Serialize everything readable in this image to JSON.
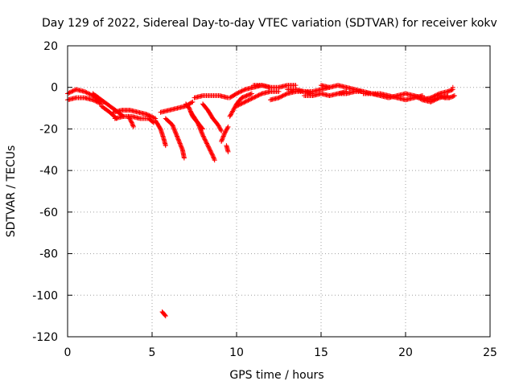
{
  "chart_data": {
    "type": "scatter",
    "title": "Day 129 of 2022, Sidereal Day-to-day VTEC variation (SDTVAR) for receiver kokv",
    "xlabel": "GPS time / hours",
    "ylabel": "SDTVAR / TECUs",
    "xlim": [
      0,
      25
    ],
    "ylim": [
      -120,
      20
    ],
    "xticks": [
      0,
      5,
      10,
      15,
      20,
      25
    ],
    "yticks": [
      20,
      0,
      -20,
      -40,
      -60,
      -80,
      -100,
      -120
    ],
    "grid": true,
    "marker": "+",
    "color": "#ff0000",
    "series": [
      {
        "name": "SDTVAR",
        "segments": [
          {
            "x": [
              0.0,
              0.5,
              1.0,
              1.5,
              2.0
            ],
            "y": [
              -3,
              -1,
              -2,
              -4,
              -7
            ]
          },
          {
            "x": [
              0.0,
              0.5,
              1.0,
              1.5,
              2.0
            ],
            "y": [
              -6,
              -5,
              -5,
              -6,
              -8
            ]
          },
          {
            "x": [
              1.5,
              2.0,
              2.5,
              3.0,
              3.3
            ],
            "y": [
              -3,
              -6,
              -9,
              -12,
              -14
            ]
          },
          {
            "x": [
              2.0,
              2.5,
              2.9
            ],
            "y": [
              -9,
              -12,
              -15
            ]
          },
          {
            "x": [
              2.7,
              3.2,
              3.7,
              4.2,
              4.7,
              5.2
            ],
            "y": [
              -12,
              -11,
              -11,
              -12,
              -13,
              -15
            ]
          },
          {
            "x": [
              2.8,
              3.3,
              3.8,
              4.3,
              4.8,
              5.1
            ],
            "y": [
              -15,
              -14,
              -14,
              -15,
              -15,
              -17
            ]
          },
          {
            "x": [
              3.6,
              3.8,
              3.9
            ],
            "y": [
              -14,
              -17,
              -19
            ]
          },
          {
            "x": [
              5.2,
              5.5,
              5.7,
              5.8
            ],
            "y": [
              -16,
              -20,
              -25,
              -28
            ]
          },
          {
            "x": [
              5.5,
              6.0,
              6.5,
              7.0,
              7.4
            ],
            "y": [
              -12,
              -11,
              -10,
              -9,
              -7
            ]
          },
          {
            "x": [
              5.8,
              6.2,
              6.5,
              6.8,
              6.9
            ],
            "y": [
              -15,
              -18,
              -24,
              -30,
              -34
            ]
          },
          {
            "x": [
              5.6,
              5.7,
              5.8
            ],
            "y": [
              -108,
              -109,
              -110
            ]
          },
          {
            "x": [
              7.3,
              7.7,
              8.0,
              8.3,
              8.6,
              8.7
            ],
            "y": [
              -12,
              -17,
              -23,
              -28,
              -33,
              -35
            ]
          },
          {
            "x": [
              7.0,
              7.2,
              7.4,
              7.7,
              8.0
            ],
            "y": [
              -8,
              -10,
              -14,
              -17,
              -20
            ]
          },
          {
            "x": [
              7.5,
              8.0,
              8.5,
              9.0,
              9.5
            ],
            "y": [
              -5,
              -4,
              -4,
              -4,
              -5
            ]
          },
          {
            "x": [
              8.0,
              8.3,
              8.6,
              8.9,
              9.1
            ],
            "y": [
              -8,
              -11,
              -15,
              -18,
              -21
            ]
          },
          {
            "x": [
              9.1,
              9.3,
              9.5
            ],
            "y": [
              -26,
              -22,
              -19
            ]
          },
          {
            "x": [
              9.4,
              9.5
            ],
            "y": [
              -28,
              -31
            ]
          },
          {
            "x": [
              9.6,
              9.8,
              10.0,
              10.3,
              10.6,
              10.9
            ],
            "y": [
              -14,
              -11,
              -8,
              -5,
              -4,
              -3
            ]
          },
          {
            "x": [
              9.6,
              10.0,
              10.5,
              11.0,
              11.5,
              12.0
            ],
            "y": [
              -5,
              -3,
              -1,
              0,
              1,
              0
            ]
          },
          {
            "x": [
              10.0,
              10.5,
              11.0,
              11.5,
              12.0,
              12.5
            ],
            "y": [
              -9,
              -7,
              -5,
              -3,
              -2,
              -2
            ]
          },
          {
            "x": [
              11.0,
              11.5,
              12.0,
              12.5,
              13.0,
              13.5
            ],
            "y": [
              1,
              1,
              0,
              0,
              1,
              1
            ]
          },
          {
            "x": [
              12.0,
              12.5,
              13.0,
              13.5,
              14.0,
              14.5
            ],
            "y": [
              -6,
              -5,
              -3,
              -2,
              -2,
              -3
            ]
          },
          {
            "x": [
              13.0,
              13.5,
              14.0,
              14.5,
              15.0,
              15.5
            ],
            "y": [
              -1,
              -1,
              -2,
              -2,
              -1,
              0
            ]
          },
          {
            "x": [
              14.0,
              14.5,
              15.0,
              15.5,
              16.0,
              16.5
            ],
            "y": [
              -4,
              -4,
              -3,
              -4,
              -3,
              -2
            ]
          },
          {
            "x": [
              15.0,
              15.5,
              16.0,
              16.5,
              17.0,
              17.5
            ],
            "y": [
              1,
              0,
              1,
              0,
              -1,
              -2
            ]
          },
          {
            "x": [
              16.0,
              16.5,
              17.0,
              17.5,
              18.0,
              18.5
            ],
            "y": [
              -3,
              -3,
              -2,
              -2,
              -3,
              -3
            ]
          },
          {
            "x": [
              17.5,
              18.0,
              18.5,
              19.0,
              19.5,
              20.0
            ],
            "y": [
              -3,
              -3,
              -4,
              -5,
              -4,
              -3
            ]
          },
          {
            "x": [
              18.5,
              19.0,
              19.5,
              20.0,
              20.5,
              21.0
            ],
            "y": [
              -3,
              -4,
              -5,
              -6,
              -5,
              -4
            ]
          },
          {
            "x": [
              20.0,
              20.5,
              21.0,
              21.5,
              22.0,
              22.5
            ],
            "y": [
              -3,
              -4,
              -5,
              -6,
              -5,
              -4
            ]
          },
          {
            "x": [
              20.5,
              21.0,
              21.5,
              22.0
            ],
            "y": [
              -4,
              -6,
              -7,
              -5
            ]
          },
          {
            "x": [
              21.0,
              21.5,
              22.0,
              22.5,
              22.8
            ],
            "y": [
              -6,
              -5,
              -3,
              -2,
              -1
            ]
          },
          {
            "x": [
              22.0,
              22.3,
              22.6,
              22.9
            ],
            "y": [
              -4,
              -5,
              -5,
              -4
            ]
          },
          {
            "x": [
              22.8
            ],
            "y": [
              0
            ]
          }
        ]
      }
    ]
  }
}
